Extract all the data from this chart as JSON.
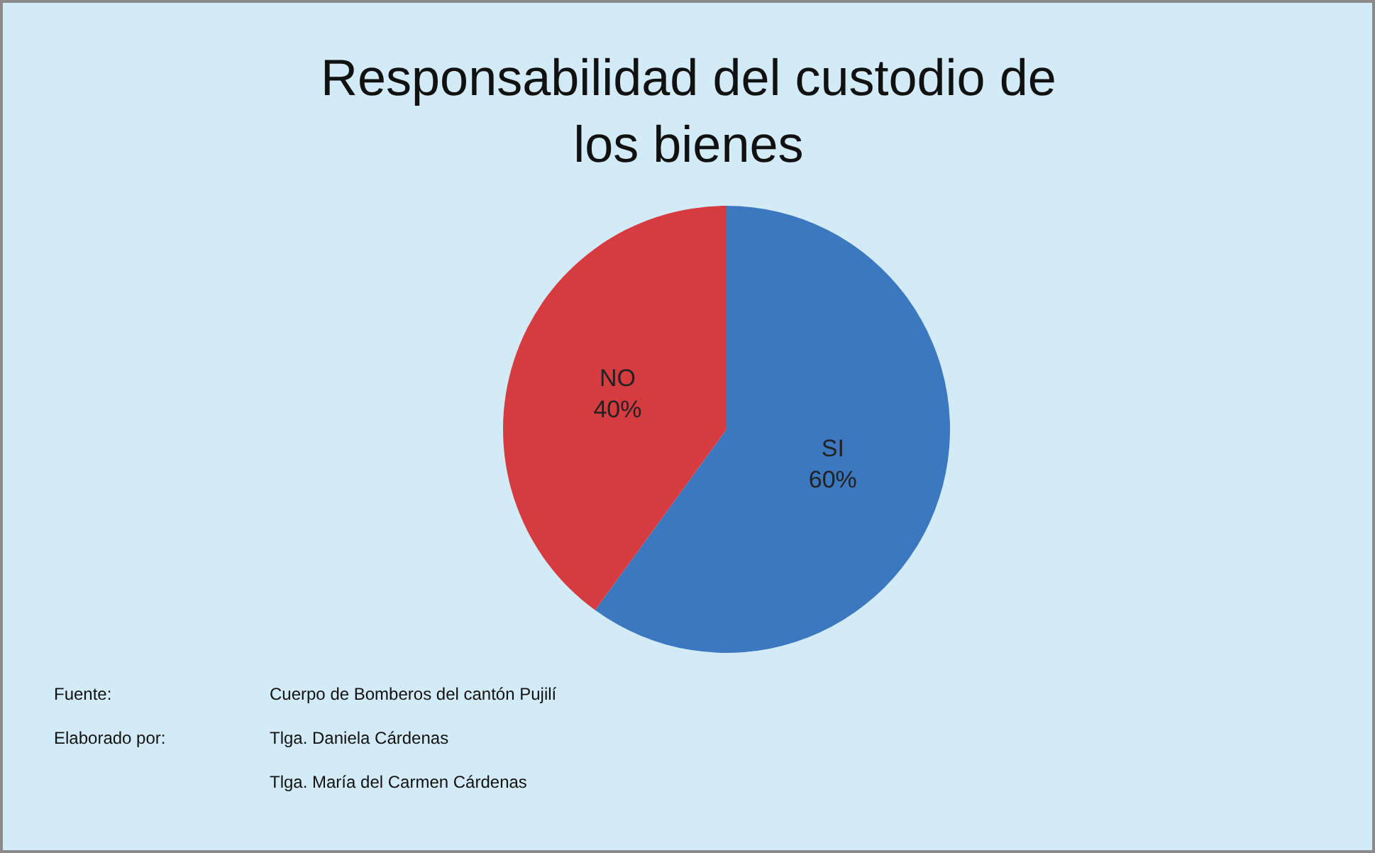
{
  "chart_data": {
    "type": "pie",
    "title": "Responsabilidad del custodio de los bienes",
    "categories": [
      "SI",
      "NO"
    ],
    "values": [
      60,
      40
    ],
    "value_labels": [
      "60%",
      "40%"
    ],
    "colors": [
      "#3b78bf",
      "#d63b40"
    ],
    "legend": false,
    "annotations": [
      "Fuente:",
      "Cuerpo de Bomberos del cantón Pujilí",
      "Elaborado por:",
      "Tlga. Daniela Cárdenas",
      "Tlga. María del Carmen Cárdenas"
    ]
  }
}
